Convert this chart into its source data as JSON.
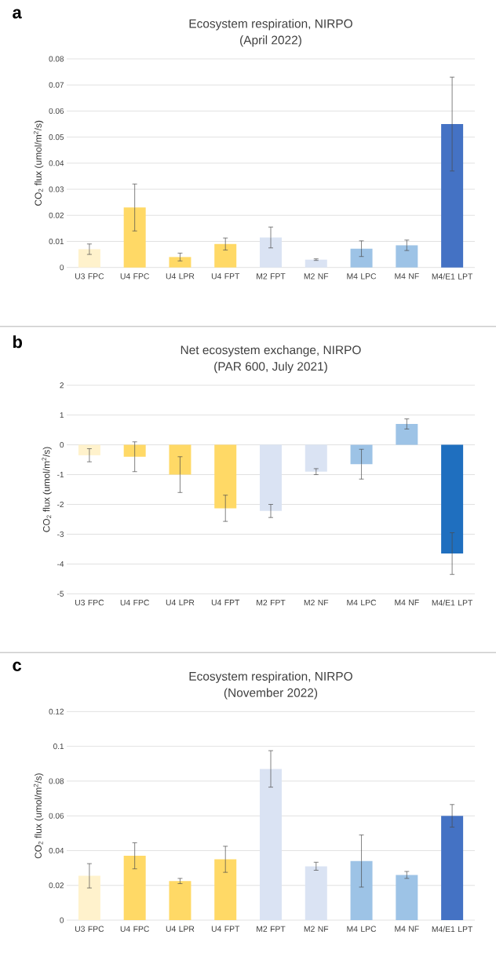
{
  "chart_data": [
    {
      "type": "bar",
      "title": "Ecosystem respiration, NIRPO",
      "subtitle": "(April 2022)",
      "ylabel": "CO$_{2}$ flux (umol/m$^{2}$/s)",
      "annotations": [
        "a"
      ],
      "categories": [
        "U3 FPC",
        "U4 FPC",
        "U4 LPR",
        "U4 FPT",
        "M2 FPT",
        "M2 NF",
        "M4 LPC",
        "M4 NF",
        "M4/E1 LPT"
      ],
      "values": [
        0.007,
        0.023,
        0.004,
        0.009,
        0.0115,
        0.003,
        0.0072,
        0.0085,
        0.055
      ],
      "errors": [
        0.002,
        0.009,
        0.0015,
        0.0023,
        0.004,
        0.0003,
        0.003,
        0.002,
        0.018
      ],
      "colors": [
        "#fff2cc",
        "#ffd966",
        "#ffd966",
        "#ffd966",
        "#dae3f3",
        "#dae3f3",
        "#9dc3e6",
        "#9dc3e6",
        "#4472c4"
      ],
      "ylim": [
        0,
        0.08
      ],
      "yticks": [
        0,
        0.01,
        0.02,
        0.03,
        0.04,
        0.05,
        0.06,
        0.07,
        0.08
      ],
      "grid": "y"
    },
    {
      "type": "bar",
      "title": "Net ecosystem exchange, NIRPO",
      "subtitle": "(PAR 600, July 2021)",
      "ylabel": "CO$_{2}$ flux (umol/m$^{2}$/s)",
      "annotations": [
        "b"
      ],
      "categories": [
        "U3 FPC",
        "U4 FPC",
        "U4 LPR",
        "U4 FPT",
        "M2 FPT",
        "M2 NF",
        "M4 LPC",
        "M4 NF",
        "M4/E1 LPT"
      ],
      "values": [
        -0.35,
        -0.4,
        -1.0,
        -2.13,
        -2.22,
        -0.9,
        -0.65,
        0.7,
        -3.65
      ],
      "errors": [
        0.22,
        0.5,
        0.6,
        0.44,
        0.22,
        0.1,
        0.5,
        0.17,
        0.7
      ],
      "colors": [
        "#fff2cc",
        "#ffd966",
        "#ffd966",
        "#ffd966",
        "#dae3f3",
        "#dae3f3",
        "#9dc3e6",
        "#9dc3e6",
        "#1f6fbf"
      ],
      "ylim": [
        -5,
        2
      ],
      "yticks": [
        -5,
        -4,
        -3,
        -2,
        -1,
        0,
        1,
        2
      ],
      "grid": "y"
    },
    {
      "type": "bar",
      "title": "Ecosystem respiration, NIRPO",
      "subtitle": "(November 2022)",
      "ylabel": "CO$_{2}$ flux (umol/m$^{2}$/s)",
      "annotations": [
        "c"
      ],
      "categories": [
        "U3 FPC",
        "U4 FPC",
        "U4 LPR",
        "U4 FPT",
        "M2 FPT",
        "M2 NF",
        "M4 LPC",
        "M4 NF",
        "M4/E1 LPT"
      ],
      "values": [
        0.0255,
        0.037,
        0.0225,
        0.035,
        0.087,
        0.031,
        0.034,
        0.026,
        0.06
      ],
      "errors": [
        0.007,
        0.0075,
        0.0015,
        0.0075,
        0.0105,
        0.0023,
        0.015,
        0.002,
        0.0065
      ],
      "colors": [
        "#fff2cc",
        "#ffd966",
        "#ffd966",
        "#ffd966",
        "#dae3f3",
        "#dae3f3",
        "#9dc3e6",
        "#9dc3e6",
        "#4472c4"
      ],
      "ylim": [
        0,
        0.12
      ],
      "yticks": [
        0,
        0.02,
        0.04,
        0.06,
        0.08,
        0.1,
        0.12
      ],
      "grid": "y"
    }
  ]
}
